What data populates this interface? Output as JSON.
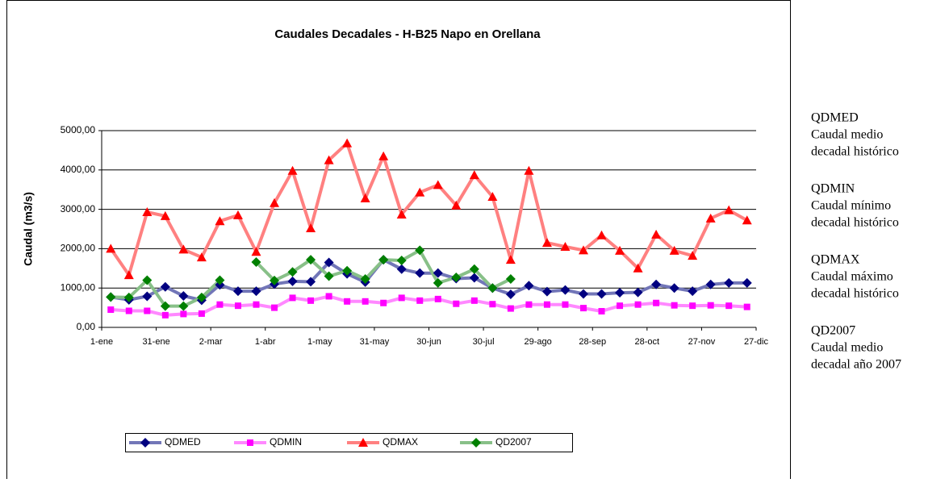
{
  "chart_data": {
    "type": "line",
    "title": "Caudales Decadales - H-B25 Napo en Orellana",
    "y_label": "Caudal (m3/s)",
    "x_labels": [
      "1-ene",
      "31-ene",
      "2-mar",
      "1-abr",
      "1-may",
      "31-may",
      "30-jun",
      "30-jul",
      "29-ago",
      "28-sep",
      "28-oct",
      "27-nov",
      "27-dic"
    ],
    "ylim": [
      0,
      5000
    ],
    "yticks": [
      {
        "value": 0,
        "label": "0,00"
      },
      {
        "value": 1000,
        "label": "1000,00"
      },
      {
        "value": 2000,
        "label": "2000,00"
      },
      {
        "value": 3000,
        "label": "3000,00"
      },
      {
        "value": 4000,
        "label": "4000,00"
      },
      {
        "value": 5000,
        "label": "5000,00"
      }
    ],
    "grid": true,
    "legend": "bottom",
    "series": [
      {
        "name": "QDMED",
        "color": "#7276b8",
        "marker": "diamond",
        "marker_color": "#000080",
        "values": [
          770,
          700,
          790,
          1030,
          800,
          690,
          1080,
          920,
          920,
          1100,
          1170,
          1160,
          1650,
          1360,
          1150,
          1720,
          1480,
          1380,
          1380,
          1240,
          1260,
          1000,
          840,
          1060,
          910,
          950,
          850,
          850,
          880,
          890,
          1090,
          1000,
          920,
          1090,
          1130,
          1130
        ]
      },
      {
        "name": "QDMIN",
        "color": "#ff88ff",
        "marker": "square",
        "marker_color": "#ff00ff",
        "values": [
          450,
          420,
          420,
          310,
          340,
          350,
          580,
          550,
          580,
          500,
          750,
          680,
          790,
          660,
          660,
          620,
          750,
          680,
          720,
          600,
          680,
          590,
          480,
          580,
          580,
          580,
          490,
          410,
          550,
          580,
          620,
          560,
          550,
          560,
          550,
          520
        ]
      },
      {
        "name": "QDMAX",
        "color": "#ff8080",
        "marker": "triangle",
        "marker_color": "#ff0000",
        "values": [
          2000,
          1330,
          2930,
          2830,
          1980,
          1780,
          2700,
          2850,
          1920,
          3160,
          3980,
          2520,
          4250,
          4680,
          3280,
          4350,
          2870,
          3430,
          3620,
          3100,
          3870,
          3320,
          1720,
          3980,
          2150,
          2050,
          1960,
          2340,
          1950,
          1500,
          2360,
          1950,
          1820,
          2770,
          2980,
          2720
        ]
      },
      {
        "name": "QD2007",
        "color": "#88c088",
        "marker": "diamond",
        "marker_color": "#008000",
        "values": [
          770,
          760,
          1200,
          540,
          540,
          760,
          1200,
          null,
          1660,
          1190,
          1410,
          1720,
          1300,
          1440,
          1230,
          1720,
          1700,
          1960,
          1130,
          1270,
          1480,
          1000,
          1230,
          null,
          null,
          null,
          null,
          null,
          null,
          null,
          null,
          null,
          null,
          null,
          null,
          null
        ]
      }
    ]
  },
  "side_notes": [
    {
      "code": "QDMED",
      "lines": [
        "Caudal medio",
        "decadal histórico"
      ]
    },
    {
      "code": "QDMIN",
      "lines": [
        "Caudal mínimo",
        "decadal histórico"
      ]
    },
    {
      "code": "QDMAX",
      "lines": [
        "Caudal máximo",
        "decadal histórico"
      ]
    },
    {
      "code": "QD2007",
      "lines": [
        "Caudal medio",
        "decadal año 2007"
      ]
    }
  ]
}
